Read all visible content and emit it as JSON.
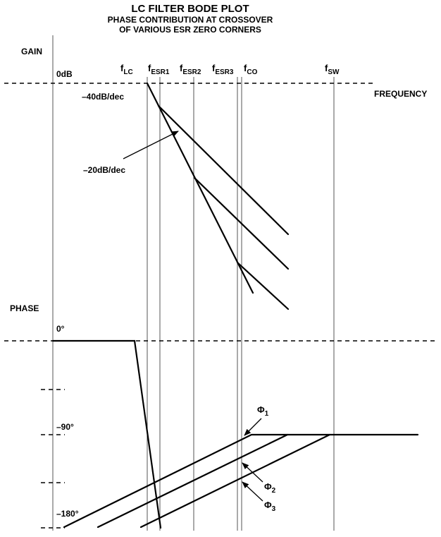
{
  "title": {
    "line1": "LC FILTER BODE PLOT",
    "line2": "PHASE CONTRIBUTION AT CROSSOVER",
    "line3": "OF VARIOUS ESR ZERO CORNERS"
  },
  "gain_panel": {
    "axis_label": "GAIN",
    "zero_db": "0dB",
    "x_axis_label": "FREQUENCY",
    "slope_40": "–40dB/dec",
    "slope_20": "–20dB/dec"
  },
  "phase_panel": {
    "axis_label": "PHASE",
    "deg_0": "0°",
    "deg_90": "–90°",
    "deg_180": "–180°"
  },
  "frequency_markers": [
    {
      "main": "f",
      "sub": "LC"
    },
    {
      "main": "f",
      "sub": "ESR1"
    },
    {
      "main": "f",
      "sub": "ESR2"
    },
    {
      "main": "f",
      "sub": "ESR3"
    },
    {
      "main": "f",
      "sub": "CO"
    },
    {
      "main": "f",
      "sub": "SW"
    }
  ],
  "phase_labels": [
    {
      "main": "Φ",
      "sub": "1"
    },
    {
      "main": "Φ",
      "sub": "2"
    },
    {
      "main": "Φ",
      "sub": "3"
    }
  ]
}
